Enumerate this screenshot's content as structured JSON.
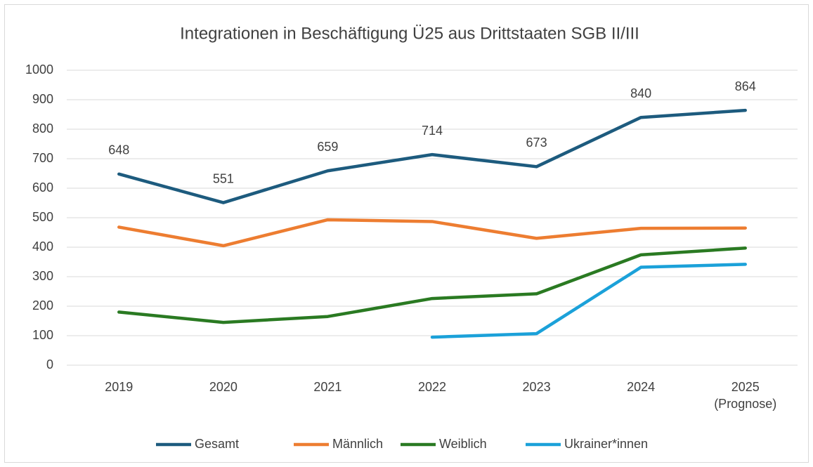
{
  "chart_data": {
    "type": "line",
    "title": "Integrationen in Beschäftigung Ü25 aus Drittstaaten SGB II/III",
    "categories": [
      "2019",
      "2020",
      "2021",
      "2022",
      "2023",
      "2024",
      "2025 (Prognose)"
    ],
    "series": [
      {
        "name": "Gesamt",
        "color": "#1d5b7e",
        "values": [
          648,
          551,
          659,
          714,
          673,
          840,
          864
        ],
        "show_values": true
      },
      {
        "name": "Männlich",
        "color": "#ed7d31",
        "values": [
          468,
          405,
          493,
          487,
          430,
          464,
          465
        ]
      },
      {
        "name": "Weiblich",
        "color": "#2a7a22",
        "values": [
          180,
          145,
          165,
          226,
          242,
          374,
          397
        ]
      },
      {
        "name": "Ukrainer*innen",
        "color": "#1ba1d9",
        "values": [
          null,
          null,
          null,
          95,
          107,
          332,
          342
        ]
      }
    ],
    "ylim": [
      0,
      1000
    ],
    "yticks": [
      0,
      100,
      200,
      300,
      400,
      500,
      600,
      700,
      800,
      900,
      1000
    ],
    "grid": true,
    "legend": "bottom"
  }
}
